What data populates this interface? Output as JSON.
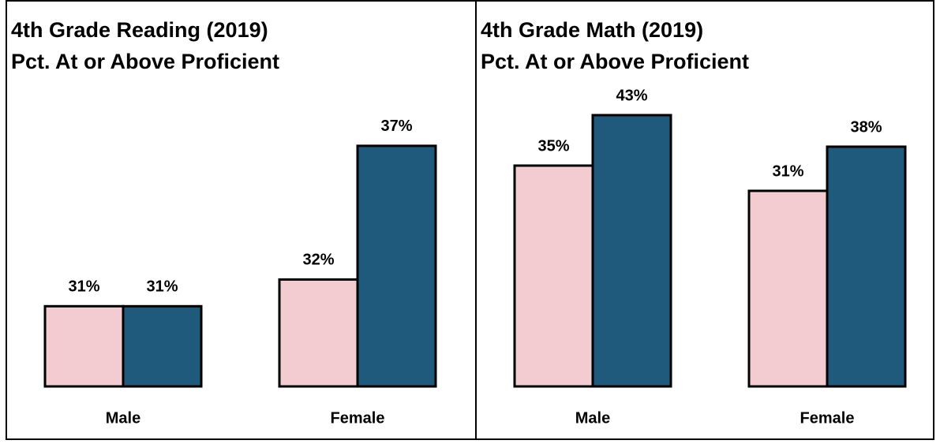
{
  "chart_data": [
    {
      "type": "bar",
      "title": "4th Grade Reading (2019)",
      "subtitle": "Pct. At or Above Proficient",
      "categories": [
        "Male",
        "Female"
      ],
      "series": [
        {
          "color": "#f2ccd1",
          "values": [
            31,
            32
          ],
          "value_labels": [
            "31%",
            "32%"
          ]
        },
        {
          "color": "#1f5a7c",
          "values": [
            31,
            37
          ],
          "value_labels": [
            "31%",
            "37%"
          ]
        }
      ],
      "ylim": [
        28,
        39.8
      ]
    },
    {
      "type": "bar",
      "title": "4th Grade Math (2019)",
      "subtitle": "Pct. At or Above Proficient",
      "categories": [
        "Male",
        "Female"
      ],
      "series": [
        {
          "color": "#f2ccd1",
          "values": [
            35,
            31
          ],
          "value_labels": [
            "35%",
            "31%"
          ]
        },
        {
          "color": "#1f5a7c",
          "values": [
            43,
            38
          ],
          "value_labels": [
            "43%",
            "38%"
          ]
        }
      ],
      "ylim": [
        0,
        50
      ]
    }
  ]
}
